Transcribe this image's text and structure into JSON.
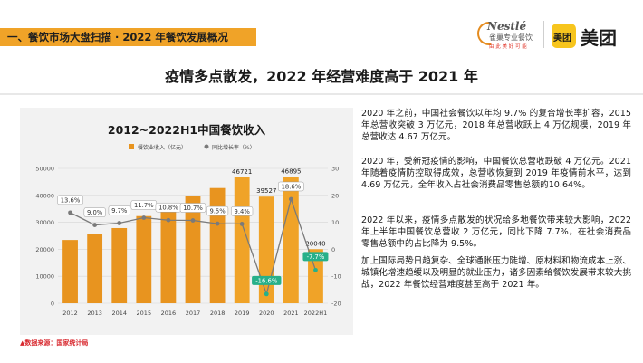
{
  "header": {
    "section_title": "一、餐饮市场大盘扫描 · 2022 年餐饮发展概况",
    "headline": "疫情多点散发，2022 年经营难度高于 2021 年"
  },
  "logos": {
    "nestle_word": "Nestlé",
    "nestle_sub": "雀巢专业餐饮",
    "nestle_tag": "由 此 美 好 可 能",
    "meituan_box": "美团",
    "meituan_text": "美团"
  },
  "chart_data": {
    "type": "bar",
    "title": "2012~2022H1中国餐饮收入",
    "categories": [
      "2012",
      "2013",
      "2014",
      "2015",
      "2016",
      "2017",
      "2018",
      "2019",
      "2020",
      "2021",
      "2022H1"
    ],
    "series": [
      {
        "name": "餐饮业收入（亿元）",
        "type": "bar",
        "axis": "left",
        "values": [
          23448,
          25569,
          27860,
          32310,
          35799,
          39644,
          42716,
          46721,
          39527,
          46895,
          20040
        ]
      },
      {
        "name": "同比增长率（%）",
        "type": "line",
        "axis": "right",
        "values": [
          13.6,
          9.0,
          9.7,
          11.7,
          10.8,
          10.7,
          9.5,
          9.4,
          -16.6,
          18.6,
          -7.7
        ]
      }
    ],
    "bar_labels": [
      "",
      "",
      "",
      "",
      "",
      "",
      "",
      "46721",
      "39527",
      "46895",
      "20040"
    ],
    "line_labels": [
      "13.6%",
      "9.0%",
      "9.7%",
      "11.7%",
      "10.8%",
      "10.7%",
      "9.5%",
      "9.4%",
      "-16.6%",
      "18.6%",
      "-7.7%"
    ],
    "left_axis": {
      "min": 0,
      "max": 50000,
      "ticks": [
        "0",
        "10000",
        "20000",
        "30000",
        "40000",
        "50000"
      ]
    },
    "right_axis": {
      "min": -20,
      "max": 30,
      "ticks": [
        "-20",
        "-10",
        "0",
        "10",
        "20",
        "30"
      ]
    },
    "legend_position": "top-left",
    "colors": {
      "bar": "#e8941f",
      "bar_highlight": "#f0a328",
      "line": "#7a7a7a",
      "negative": "#27b08a",
      "panel": "#f2f2f2"
    }
  },
  "source": "▲数据来源：国家统计局",
  "paragraphs": [
    "2020 年之前，中国社会餐饮以年均 9.7% 的复合增长率扩容，2015 年总营收突破 3 万亿元，2018 年总营收跃上 4 万亿规模，2019 年总营收达 4.67 万亿元。",
    "2020 年，受新冠疫情的影响，中国餐饮总营收跌破 4 万亿元。2021 年随着疫情防控取得成效，总营收恢复到 2019 年疫情前水平，达到 4.69 万亿元，全年收入占社会消费品零售总额的10.64%。",
    "2022 年以来，疫情多点散发的状况给多地餐饮带来较大影响，2022 年上半年中国餐饮总营收 2 万亿元，同比下降 7.7%，在社会消费品零售总额中的占比降为 9.5%。",
    "加上国际局势日趋复杂、全球通胀压力陡增、原材料和物流成本上涨、城镇化增速趋缓以及明显的就业压力，诸多因素给餐饮发展带来较大挑战，2022 年餐饮经营难度甚至高于 2021 年。"
  ]
}
